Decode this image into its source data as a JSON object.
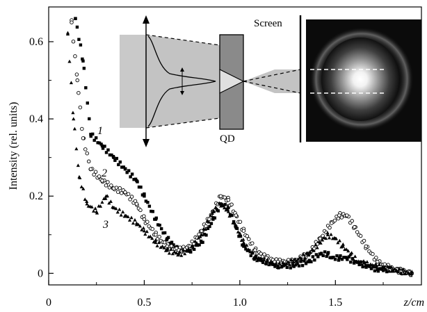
{
  "chart_data": {
    "type": "scatter",
    "title": "",
    "xlabel": "z/cm",
    "ylabel": "Intensity (rel. units)",
    "xlim": [
      0,
      1.95
    ],
    "ylim": [
      -0.03,
      0.69
    ],
    "x_ticks": [
      0,
      0.5,
      1.0,
      1.5
    ],
    "x_tick_labels": [
      "0",
      "0.5",
      "1.0",
      "1.5"
    ],
    "y_ticks": [
      0,
      0.2,
      0.4,
      0.6
    ],
    "y_tick_labels": [
      "0",
      "0.2",
      "0.4",
      "0.6"
    ],
    "grid": false,
    "series": [
      {
        "name": "1",
        "marker": "square",
        "color": "#000000",
        "x": [
          0.14,
          0.18,
          0.22,
          0.28,
          0.34,
          0.4,
          0.46,
          0.5,
          0.56,
          0.62,
          0.68,
          0.74,
          0.8,
          0.86,
          0.9,
          0.94,
          0.98,
          1.02,
          1.08,
          1.14,
          1.2,
          1.28,
          1.36,
          1.42,
          1.46,
          1.48,
          1.52,
          1.56,
          1.6,
          1.66,
          1.72,
          1.8,
          1.9
        ],
        "y": [
          0.66,
          0.55,
          0.36,
          0.33,
          0.3,
          0.27,
          0.24,
          0.2,
          0.14,
          0.09,
          0.06,
          0.06,
          0.08,
          0.14,
          0.18,
          0.17,
          0.12,
          0.07,
          0.04,
          0.03,
          0.02,
          0.02,
          0.03,
          0.05,
          0.05,
          0.04,
          0.04,
          0.04,
          0.03,
          0.02,
          0.01,
          0.01,
          0.0
        ]
      },
      {
        "name": "2",
        "marker": "circle-open",
        "color": "#000000",
        "x": [
          0.12,
          0.15,
          0.18,
          0.22,
          0.28,
          0.34,
          0.4,
          0.46,
          0.5,
          0.56,
          0.62,
          0.68,
          0.74,
          0.8,
          0.86,
          0.9,
          0.94,
          0.98,
          1.02,
          1.08,
          1.14,
          1.2,
          1.28,
          1.36,
          1.42,
          1.48,
          1.52,
          1.56,
          1.6,
          1.66,
          1.72,
          1.8,
          1.9
        ],
        "y": [
          0.65,
          0.5,
          0.35,
          0.27,
          0.24,
          0.22,
          0.21,
          0.18,
          0.14,
          0.1,
          0.07,
          0.06,
          0.07,
          0.11,
          0.16,
          0.2,
          0.19,
          0.15,
          0.11,
          0.06,
          0.04,
          0.03,
          0.03,
          0.05,
          0.09,
          0.13,
          0.15,
          0.15,
          0.12,
          0.07,
          0.03,
          0.01,
          0.0
        ]
      },
      {
        "name": "3",
        "marker": "triangle",
        "color": "#000000",
        "x": [
          0.1,
          0.13,
          0.16,
          0.2,
          0.25,
          0.3,
          0.34,
          0.4,
          0.46,
          0.5,
          0.56,
          0.62,
          0.68,
          0.74,
          0.8,
          0.86,
          0.9,
          0.94,
          0.98,
          1.02,
          1.08,
          1.14,
          1.2,
          1.28,
          1.36,
          1.42,
          1.46,
          1.5,
          1.54,
          1.58,
          1.62,
          1.7,
          1.8,
          1.9
        ],
        "y": [
          0.62,
          0.4,
          0.25,
          0.18,
          0.16,
          0.2,
          0.17,
          0.15,
          0.13,
          0.11,
          0.08,
          0.06,
          0.05,
          0.06,
          0.1,
          0.16,
          0.18,
          0.16,
          0.12,
          0.08,
          0.04,
          0.03,
          0.02,
          0.03,
          0.05,
          0.08,
          0.1,
          0.09,
          0.07,
          0.05,
          0.03,
          0.02,
          0.01,
          0.0
        ]
      }
    ],
    "inset": {
      "labels": {
        "screen": "Screen",
        "qd": "QD"
      }
    }
  }
}
